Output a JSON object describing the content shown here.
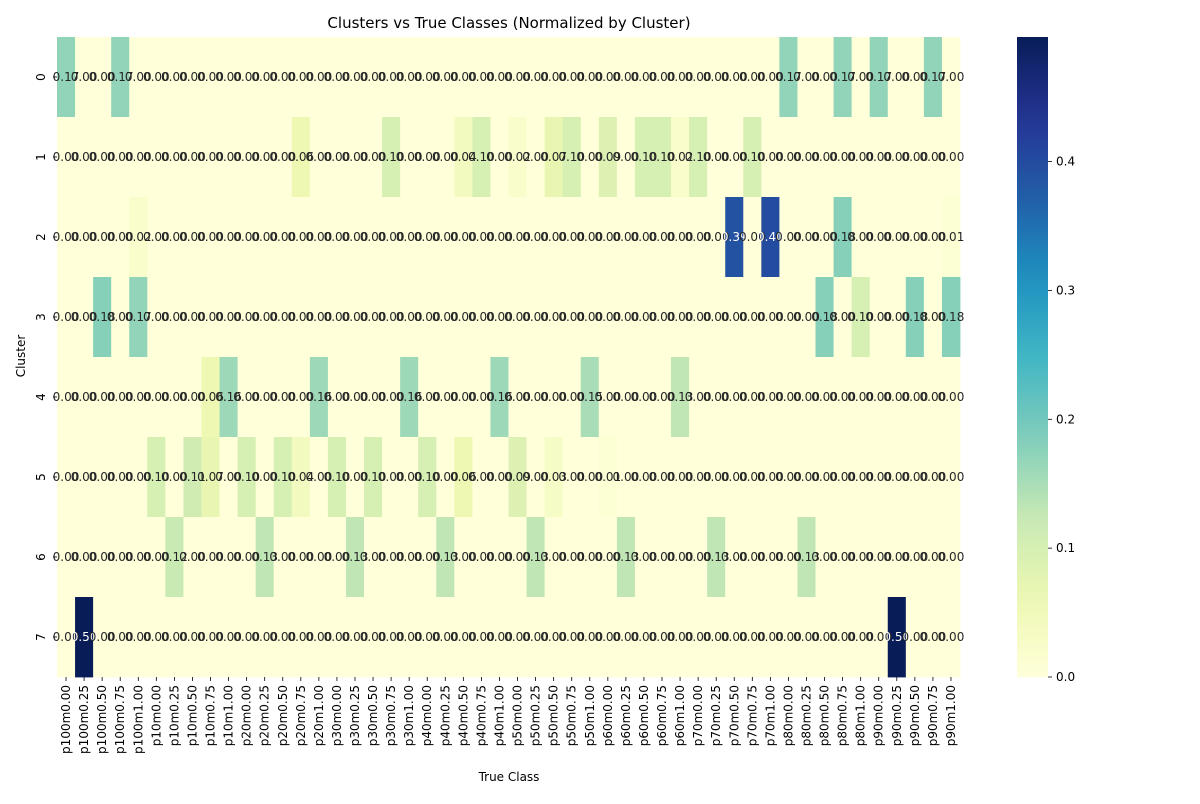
{
  "chart_data": {
    "type": "heatmap",
    "title": "Clusters vs True Classes (Normalized by Cluster)",
    "xlabel": "True Class",
    "ylabel": "Cluster",
    "x": [
      "p100m0.00",
      "p100m0.25",
      "p100m0.50",
      "p100m0.75",
      "p100m1.00",
      "p10m0.00",
      "p10m0.25",
      "p10m0.50",
      "p10m0.75",
      "p10m1.00",
      "p20m0.00",
      "p20m0.25",
      "p20m0.50",
      "p20m0.75",
      "p20m1.00",
      "p30m0.00",
      "p30m0.25",
      "p30m0.50",
      "p30m0.75",
      "p30m1.00",
      "p40m0.00",
      "p40m0.25",
      "p40m0.50",
      "p40m0.75",
      "p40m1.00",
      "p50m0.00",
      "p50m0.25",
      "p50m0.50",
      "p50m0.75",
      "p50m1.00",
      "p60m0.00",
      "p60m0.25",
      "p60m0.50",
      "p60m0.75",
      "p60m1.00",
      "p70m0.00",
      "p70m0.25",
      "p70m0.50",
      "p70m0.75",
      "p70m1.00",
      "p80m0.00",
      "p80m0.25",
      "p80m0.50",
      "p80m0.75",
      "p80m1.00",
      "p90m0.00",
      "p90m0.25",
      "p90m0.50",
      "p90m0.75",
      "p90m1.00"
    ],
    "y": [
      "0",
      "1",
      "2",
      "3",
      "4",
      "5",
      "6",
      "7"
    ],
    "values": [
      [
        0.17,
        0.0,
        0.0,
        0.17,
        0.0,
        0.0,
        0.0,
        0.0,
        0.0,
        0.0,
        0.0,
        0.0,
        0.0,
        0.0,
        0.0,
        0.0,
        0.0,
        0.0,
        0.0,
        0.0,
        0.0,
        0.0,
        0.0,
        0.0,
        0.0,
        0.0,
        0.0,
        0.0,
        0.0,
        0.0,
        0.0,
        0.0,
        0.0,
        0.0,
        0.0,
        0.0,
        0.0,
        0.0,
        0.0,
        0.0,
        0.17,
        0.0,
        0.0,
        0.17,
        0.0,
        0.17,
        0.0,
        0.0,
        0.17,
        0.0
      ],
      [
        0.0,
        0.0,
        0.0,
        0.0,
        0.0,
        0.0,
        0.0,
        0.0,
        0.0,
        0.0,
        0.0,
        0.0,
        0.0,
        0.06,
        0.0,
        0.0,
        0.0,
        0.0,
        0.1,
        0.0,
        0.0,
        0.0,
        0.04,
        0.1,
        0.0,
        0.02,
        0.0,
        0.07,
        0.1,
        0.0,
        0.09,
        0.0,
        0.1,
        0.1,
        0.02,
        0.1,
        0.0,
        0.0,
        0.1,
        0.0,
        0.0,
        0.0,
        0.0,
        0.0,
        0.0,
        0.0,
        0.0,
        0.0,
        0.0,
        0.0
      ],
      [
        0.0,
        0.0,
        0.0,
        0.0,
        0.02,
        0.0,
        0.0,
        0.0,
        0.0,
        0.0,
        0.0,
        0.0,
        0.0,
        0.0,
        0.0,
        0.0,
        0.0,
        0.0,
        0.0,
        0.0,
        0.0,
        0.0,
        0.0,
        0.0,
        0.0,
        0.0,
        0.0,
        0.0,
        0.0,
        0.0,
        0.0,
        0.0,
        0.0,
        0.0,
        0.0,
        0.0,
        0.0,
        0.39,
        0.0,
        0.4,
        0.0,
        0.0,
        0.0,
        0.18,
        0.0,
        0.0,
        0.0,
        0.0,
        0.0,
        0.01
      ],
      [
        0.0,
        0.0,
        0.18,
        0.0,
        0.17,
        0.0,
        0.0,
        0.0,
        0.0,
        0.0,
        0.0,
        0.0,
        0.0,
        0.0,
        0.0,
        0.0,
        0.0,
        0.0,
        0.0,
        0.0,
        0.0,
        0.0,
        0.0,
        0.0,
        0.0,
        0.0,
        0.0,
        0.0,
        0.0,
        0.0,
        0.0,
        0.0,
        0.0,
        0.0,
        0.0,
        0.0,
        0.0,
        0.0,
        0.0,
        0.0,
        0.0,
        0.0,
        0.18,
        0.0,
        0.1,
        0.0,
        0.0,
        0.18,
        0.0,
        0.18
      ],
      [
        0.0,
        0.0,
        0.0,
        0.0,
        0.0,
        0.0,
        0.0,
        0.0,
        0.06,
        0.16,
        0.0,
        0.0,
        0.0,
        0.0,
        0.16,
        0.0,
        0.0,
        0.0,
        0.0,
        0.16,
        0.0,
        0.0,
        0.0,
        0.0,
        0.16,
        0.0,
        0.0,
        0.0,
        0.0,
        0.15,
        0.0,
        0.0,
        0.0,
        0.0,
        0.13,
        0.0,
        0.0,
        0.0,
        0.0,
        0.0,
        0.0,
        0.0,
        0.0,
        0.0,
        0.0,
        0.0,
        0.0,
        0.0,
        0.0,
        0.0
      ],
      [
        0.0,
        0.0,
        0.0,
        0.0,
        0.0,
        0.1,
        0.0,
        0.11,
        0.07,
        0.0,
        0.1,
        0.0,
        0.1,
        0.04,
        0.0,
        0.1,
        0.0,
        0.1,
        0.0,
        0.0,
        0.1,
        0.0,
        0.06,
        0.0,
        0.0,
        0.09,
        0.0,
        0.03,
        0.0,
        0.0,
        0.01,
        0.0,
        0.0,
        0.0,
        0.0,
        0.0,
        0.0,
        0.0,
        0.0,
        0.0,
        0.0,
        0.0,
        0.0,
        0.0,
        0.0,
        0.0,
        0.0,
        0.0,
        0.0,
        0.0
      ],
      [
        0.0,
        0.0,
        0.0,
        0.0,
        0.0,
        0.0,
        0.12,
        0.0,
        0.0,
        0.0,
        0.0,
        0.13,
        0.0,
        0.0,
        0.0,
        0.0,
        0.13,
        0.0,
        0.0,
        0.0,
        0.0,
        0.13,
        0.0,
        0.0,
        0.0,
        0.0,
        0.13,
        0.0,
        0.0,
        0.0,
        0.0,
        0.13,
        0.0,
        0.0,
        0.0,
        0.0,
        0.13,
        0.0,
        0.0,
        0.0,
        0.0,
        0.13,
        0.0,
        0.0,
        0.0,
        0.0,
        0.0,
        0.0,
        0.0,
        0.0
      ],
      [
        0.0,
        0.5,
        0.0,
        0.0,
        0.0,
        0.0,
        0.0,
        0.0,
        0.0,
        0.0,
        0.0,
        0.0,
        0.0,
        0.0,
        0.0,
        0.0,
        0.0,
        0.0,
        0.0,
        0.0,
        0.0,
        0.0,
        0.0,
        0.0,
        0.0,
        0.0,
        0.0,
        0.0,
        0.0,
        0.0,
        0.0,
        0.0,
        0.0,
        0.0,
        0.0,
        0.0,
        0.0,
        0.0,
        0.0,
        0.0,
        0.0,
        0.0,
        0.0,
        0.0,
        0.0,
        0.0,
        0.5,
        0.0,
        0.0,
        0.0
      ]
    ],
    "vmin": 0.0,
    "vmax": 0.4967,
    "colormap": "YlGnBu",
    "colorbar_ticks": [
      "0.0",
      "0.1",
      "0.2",
      "0.3",
      "0.4"
    ],
    "colorbar_tick_values": [
      0.0,
      0.1,
      0.2,
      0.3,
      0.4
    ],
    "annotation_format": "2 decimals",
    "grid": false,
    "legend": "colorbar-right"
  }
}
